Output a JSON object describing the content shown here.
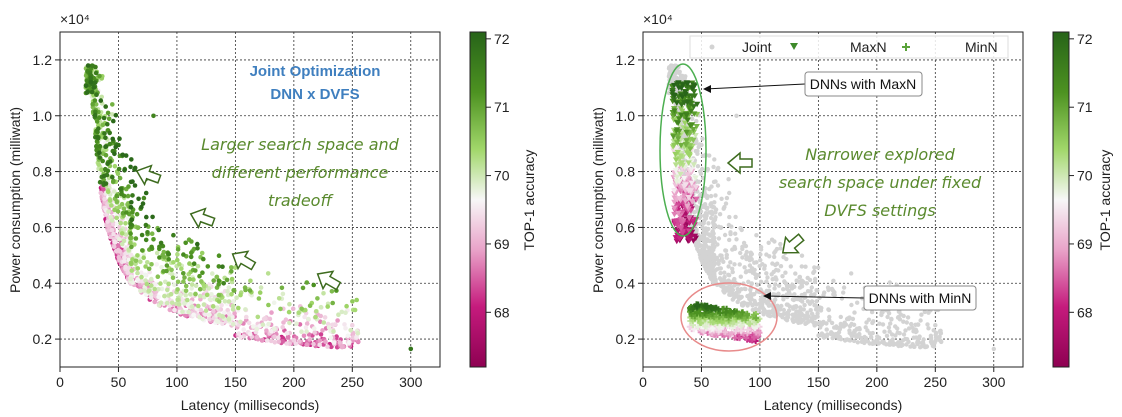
{
  "colors": {
    "cmap_low": "#c51b7d",
    "cmap_mid": "#f7f7f7",
    "cmap_high": "#1f6d1a",
    "grey_points": "#d3d3d3",
    "annotation_green": "#5a8a2e",
    "annotation_blue": "#3f7fbf",
    "ellipse_green": "#4caf50",
    "ellipse_pink": "#e88b8b"
  },
  "chart_data": [
    {
      "type": "scatter",
      "id": "left",
      "xlabel": "Latency (milliseconds)",
      "ylabel": "Power consumption (milliwatt)",
      "y_multiplier": "×10⁴",
      "xlim": [
        0,
        325
      ],
      "ylim": [
        0.1,
        1.3
      ],
      "xticks": [
        "0",
        "50",
        "100",
        "150",
        "200",
        "250",
        "300"
      ],
      "yticks": [
        "0.2",
        "0.4",
        "0.6",
        "0.8",
        "1.0",
        "1.2"
      ],
      "grid": true,
      "colorbar": {
        "label": "TOP-1 accuracy",
        "min": 67.2,
        "max": 72.1,
        "ticks": [
          "68",
          "69",
          "70",
          "71",
          "72"
        ]
      },
      "annotations": {
        "title_line1": "Joint Optimization",
        "title_line2": "DNN x DVFS",
        "text_line1": "Larger search space and",
        "text_line2": "different performance",
        "text_line3": "tradeoff"
      },
      "series": [
        {
          "name": "Joint",
          "marker": "circle",
          "front": {
            "x": [
              25,
              30,
              35,
              40,
              50,
              60,
              80,
              100,
              130,
              160,
              200,
              240,
              250
            ],
            "y": [
              1.15,
              0.88,
              0.68,
              0.56,
              0.44,
              0.36,
              0.29,
              0.25,
              0.22,
              0.2,
              0.18,
              0.17,
              0.17
            ]
          }
        }
      ]
    },
    {
      "type": "scatter",
      "id": "right",
      "xlabel": "Latency (milliseconds)",
      "ylabel": "Power consumption (milliwatt)",
      "y_multiplier": "×10⁴",
      "xlim": [
        0,
        325
      ],
      "ylim": [
        0.1,
        1.3
      ],
      "xticks": [
        "0",
        "50",
        "100",
        "150",
        "200",
        "250",
        "300"
      ],
      "yticks": [
        "0.2",
        "0.4",
        "0.6",
        "0.8",
        "1.0",
        "1.2"
      ],
      "grid": true,
      "legend": {
        "placement": "top",
        "entries": [
          "Joint",
          "MaxN",
          "MinN"
        ]
      },
      "colorbar": {
        "label": "TOP-1 accuracy",
        "min": 67.2,
        "max": 72.1,
        "ticks": [
          "68",
          "69",
          "70",
          "71",
          "72"
        ]
      },
      "annotations": {
        "text_line1": "Narrower explored",
        "text_line2": "search space under fixed",
        "text_line3": "DVFS settings",
        "callout_maxn": "DNNs with MaxN",
        "callout_minn": "DNNs with MinN"
      },
      "series": [
        {
          "name": "Joint",
          "marker": "circle",
          "color": "#d3d3d3"
        },
        {
          "name": "MaxN",
          "marker": "triangle-down",
          "x_range": [
            22,
            52
          ],
          "y_range": [
            0.55,
            1.12
          ]
        },
        {
          "name": "MinN",
          "marker": "plus",
          "x_range": [
            40,
            100
          ],
          "y_range": [
            0.18,
            0.33
          ]
        }
      ]
    }
  ]
}
